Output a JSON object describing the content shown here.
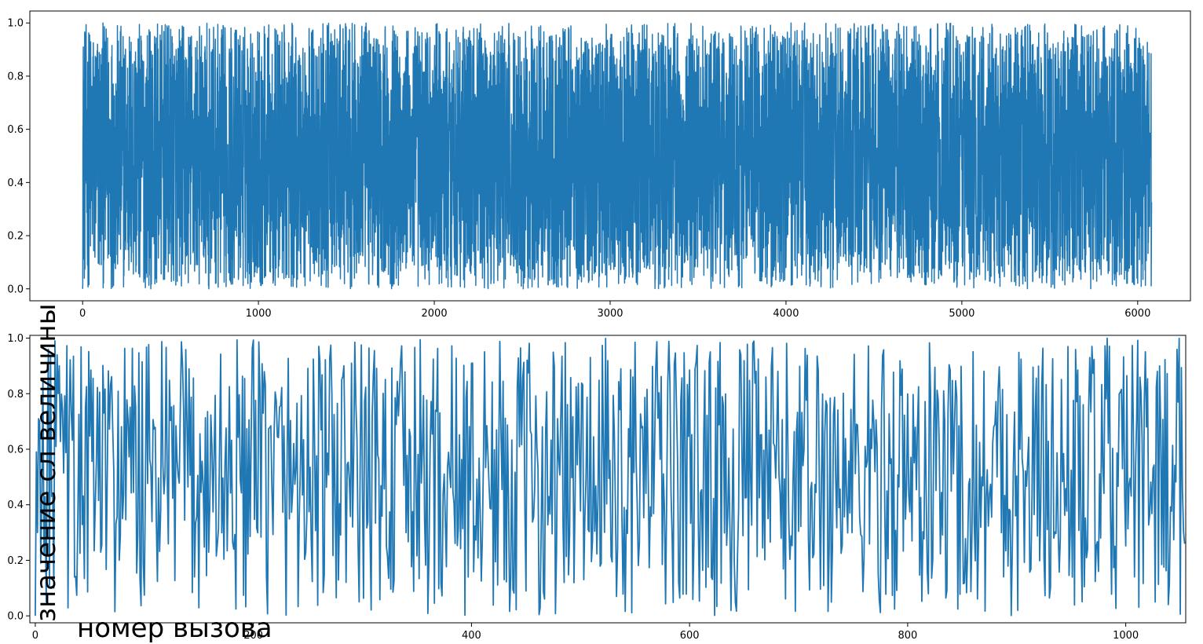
{
  "chart_data": [
    {
      "type": "line",
      "title": "",
      "xlabel": "",
      "ylabel": "",
      "xlim": [
        -300,
        6300
      ],
      "ylim": [
        -0.045,
        1.045
      ],
      "xticks": [
        0,
        1000,
        2000,
        3000,
        4000,
        5000,
        6000
      ],
      "yticks": [
        0.0,
        0.2,
        0.4,
        0.6,
        0.8,
        1.0
      ],
      "xtick_labels": [
        "0",
        "1000",
        "2000",
        "3000",
        "4000",
        "5000",
        "6000"
      ],
      "ytick_labels": [
        "0.0",
        "0.2",
        "0.4",
        "0.6",
        "0.8",
        "1.0"
      ],
      "n_points": 6080,
      "value_range": [
        0.0,
        1.0
      ],
      "series_color": "#1f77b4",
      "grid": false,
      "description": "Dense uniformly distributed random values between 0 and 1 for about 6080 samples"
    },
    {
      "type": "line",
      "title": "",
      "xlabel": "номер вызова",
      "ylabel": "значение сл величины",
      "xlim": [
        -5,
        1055
      ],
      "ylim": [
        -0.025,
        1.01
      ],
      "xticks": [
        0,
        200,
        400,
        600,
        800,
        1000
      ],
      "yticks": [
        0.0,
        0.2,
        0.4,
        0.6,
        0.8,
        1.0
      ],
      "xtick_labels": [
        "0",
        "200",
        "400",
        "600",
        "800",
        "1000"
      ],
      "ytick_labels": [
        "0.0",
        "0.2",
        "0.4",
        "0.6",
        "0.8",
        "1.0"
      ],
      "n_points": 1055,
      "value_range": [
        0.0,
        1.0
      ],
      "first_values": [
        0.0,
        0.59,
        0.3,
        0.71,
        0.7,
        0.19,
        0.43,
        0.85,
        0.22,
        0.43,
        0.05,
        0.62,
        0.96,
        0.11,
        0.93,
        0.43,
        0.44,
        0.1,
        0.99,
        0.61,
        0.94,
        0.8,
        0.9
      ],
      "series_color": "#1f77b4",
      "grid": false
    }
  ]
}
